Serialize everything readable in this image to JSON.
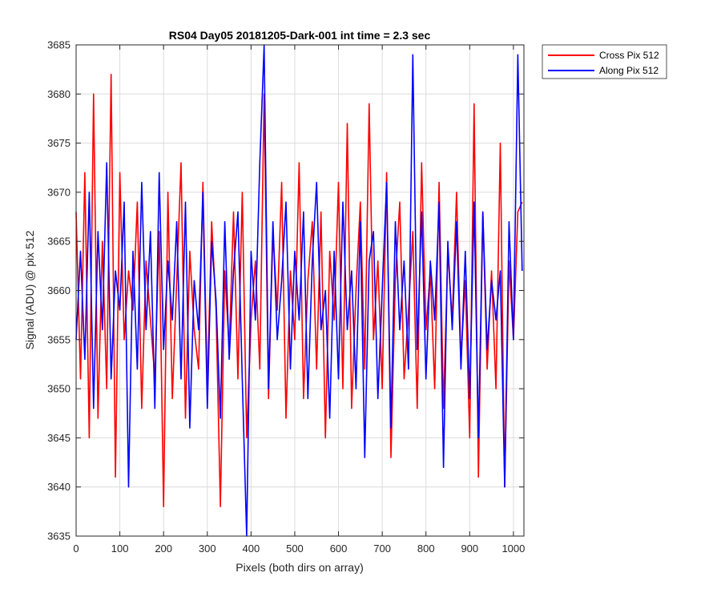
{
  "chart_data": {
    "type": "line",
    "title": "RS04 Day05 20181205-Dark-001 int time = 2.3 sec",
    "xlabel": "Pixels (both dirs on array)",
    "ylabel": "Signal (ADU) @ pix 512",
    "xlim": [
      0,
      1024
    ],
    "ylim": [
      3635,
      3685
    ],
    "xticks": [
      0,
      100,
      200,
      300,
      400,
      500,
      600,
      700,
      800,
      900,
      1000
    ],
    "yticks": [
      3635,
      3640,
      3645,
      3650,
      3655,
      3660,
      3665,
      3670,
      3675,
      3680,
      3685
    ],
    "grid": true,
    "legend_position": "outside-top-right",
    "series": [
      {
        "name": "Cross Pix 512",
        "color": "#ff0000",
        "x": [
          0,
          10,
          20,
          30,
          40,
          50,
          60,
          70,
          80,
          90,
          100,
          110,
          120,
          130,
          140,
          150,
          160,
          170,
          180,
          190,
          200,
          210,
          220,
          230,
          240,
          250,
          260,
          270,
          280,
          290,
          300,
          310,
          320,
          330,
          340,
          350,
          360,
          370,
          380,
          390,
          400,
          410,
          420,
          430,
          440,
          450,
          460,
          470,
          480,
          490,
          500,
          510,
          520,
          530,
          540,
          550,
          560,
          570,
          580,
          590,
          600,
          610,
          620,
          630,
          640,
          650,
          660,
          670,
          680,
          690,
          700,
          710,
          720,
          730,
          740,
          750,
          760,
          770,
          780,
          790,
          800,
          810,
          820,
          830,
          840,
          850,
          860,
          870,
          880,
          890,
          900,
          910,
          920,
          930,
          940,
          950,
          960,
          970,
          980,
          990,
          1000,
          1010,
          1020
        ],
        "y": [
          3668,
          3651,
          3672,
          3645,
          3680,
          3647,
          3665,
          3650,
          3682,
          3641,
          3672,
          3655,
          3662,
          3658,
          3669,
          3648,
          3663,
          3657,
          3651,
          3666,
          3638,
          3670,
          3649,
          3661,
          3673,
          3647,
          3664,
          3656,
          3652,
          3671,
          3650,
          3667,
          3658,
          3638,
          3662,
          3654,
          3668,
          3651,
          3670,
          3645,
          3657,
          3663,
          3652,
          3680,
          3649,
          3666,
          3658,
          3671,
          3647,
          3662,
          3655,
          3673,
          3649,
          3661,
          3667,
          3652,
          3668,
          3645,
          3664,
          3657,
          3671,
          3650,
          3677,
          3648,
          3660,
          3669,
          3652,
          3679,
          3655,
          3663,
          3650,
          3672,
          3643,
          3661,
          3669,
          3651,
          3658,
          3666,
          3648,
          3673,
          3656,
          3662,
          3650,
          3671,
          3648,
          3664,
          3657,
          3670,
          3653,
          3661,
          3645,
          3679,
          3641,
          3668,
          3652,
          3662,
          3650,
          3675,
          3640,
          3663,
          3655,
          3668,
          3669
        ]
      },
      {
        "name": "Along Pix 512",
        "color": "#0000ff",
        "x": [
          0,
          10,
          20,
          30,
          40,
          50,
          60,
          70,
          80,
          90,
          100,
          110,
          120,
          130,
          140,
          150,
          160,
          170,
          180,
          190,
          200,
          210,
          220,
          230,
          240,
          250,
          260,
          270,
          280,
          290,
          300,
          310,
          320,
          330,
          340,
          350,
          360,
          370,
          380,
          390,
          400,
          410,
          420,
          430,
          440,
          450,
          460,
          470,
          480,
          490,
          500,
          510,
          520,
          530,
          540,
          550,
          560,
          570,
          580,
          590,
          600,
          610,
          620,
          630,
          640,
          650,
          660,
          670,
          680,
          690,
          700,
          710,
          720,
          730,
          740,
          750,
          760,
          770,
          780,
          790,
          800,
          810,
          820,
          830,
          840,
          850,
          860,
          870,
          880,
          890,
          900,
          910,
          920,
          930,
          940,
          950,
          960,
          970,
          980,
          990,
          1000,
          1010,
          1020
        ],
        "y": [
          3655,
          3664,
          3653,
          3670,
          3648,
          3666,
          3656,
          3673,
          3651,
          3662,
          3658,
          3669,
          3640,
          3664,
          3652,
          3671,
          3656,
          3666,
          3648,
          3672,
          3654,
          3663,
          3657,
          3667,
          3651,
          3669,
          3646,
          3661,
          3656,
          3670,
          3648,
          3665,
          3659,
          3647,
          3667,
          3653,
          3662,
          3668,
          3651,
          3635,
          3664,
          3657,
          3673,
          3685,
          3650,
          3667,
          3655,
          3661,
          3669,
          3652,
          3664,
          3657,
          3668,
          3649,
          3663,
          3671,
          3656,
          3660,
          3647,
          3664,
          3651,
          3669,
          3656,
          3662,
          3650,
          3667,
          3643,
          3663,
          3666,
          3649,
          3660,
          3671,
          3646,
          3667,
          3656,
          3663,
          3652,
          3684,
          3654,
          3668,
          3651,
          3663,
          3657,
          3669,
          3642,
          3665,
          3656,
          3667,
          3652,
          3664,
          3649,
          3669,
          3645,
          3668,
          3654,
          3661,
          3657,
          3662,
          3640,
          3667,
          3655,
          3684,
          3662
        ]
      }
    ]
  }
}
